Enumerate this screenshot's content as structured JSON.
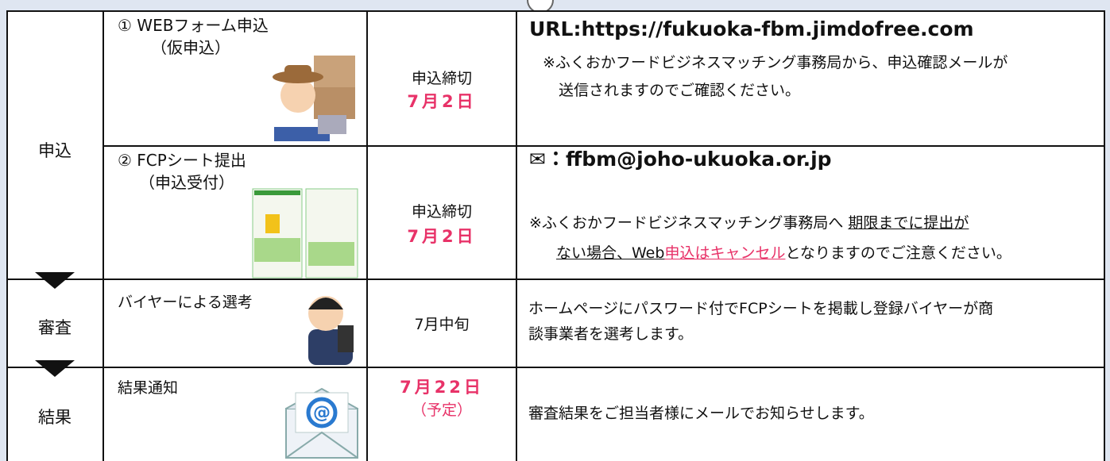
{
  "stages": [
    {
      "label": "申込"
    },
    {
      "label": "審査"
    },
    {
      "label": "結果"
    }
  ],
  "steps": [
    {
      "step": "① WEBフォーム申込",
      "step_sub": "（仮申込）",
      "deadline_label": "申込締切",
      "deadline": "7月2日",
      "info_head": "URL:https://fukuoka-fbm.jimdofree.com",
      "info_lines": [
        "※ふくおかフードビジネスマッチング事務局から、申込確認メールが",
        "送信されますのでご確認ください。"
      ]
    },
    {
      "step": "② FCPシート提出",
      "step_sub": "（申込受付）",
      "deadline_label": "申込締切",
      "deadline": "7月2日",
      "info_head": "✉：ffbm@joho-ukuoka.or.jp",
      "note_line1": {
        "plain": "※ふくおかフードビジネスマッチング事務局へ",
        "underlined": "期限までに提出が"
      },
      "note_line2": {
        "underlined": "ない場合、Web",
        "underlined_pink": "申込はキャンセル",
        "plain": "となりますのでご注意ください。"
      }
    },
    {
      "step": "バイヤーによる選考",
      "deadline": "7月中旬",
      "info_lines": [
        "ホームページにパスワード付でFCPシートを掲載し登録バイヤーが商",
        "談事業者を選考します。"
      ]
    },
    {
      "step": "結果通知",
      "deadline": "7月22日",
      "deadline_sub": "（予定）",
      "info_lines": [
        "審査結果をご担当者様にメールでお知らせします。"
      ]
    }
  ]
}
